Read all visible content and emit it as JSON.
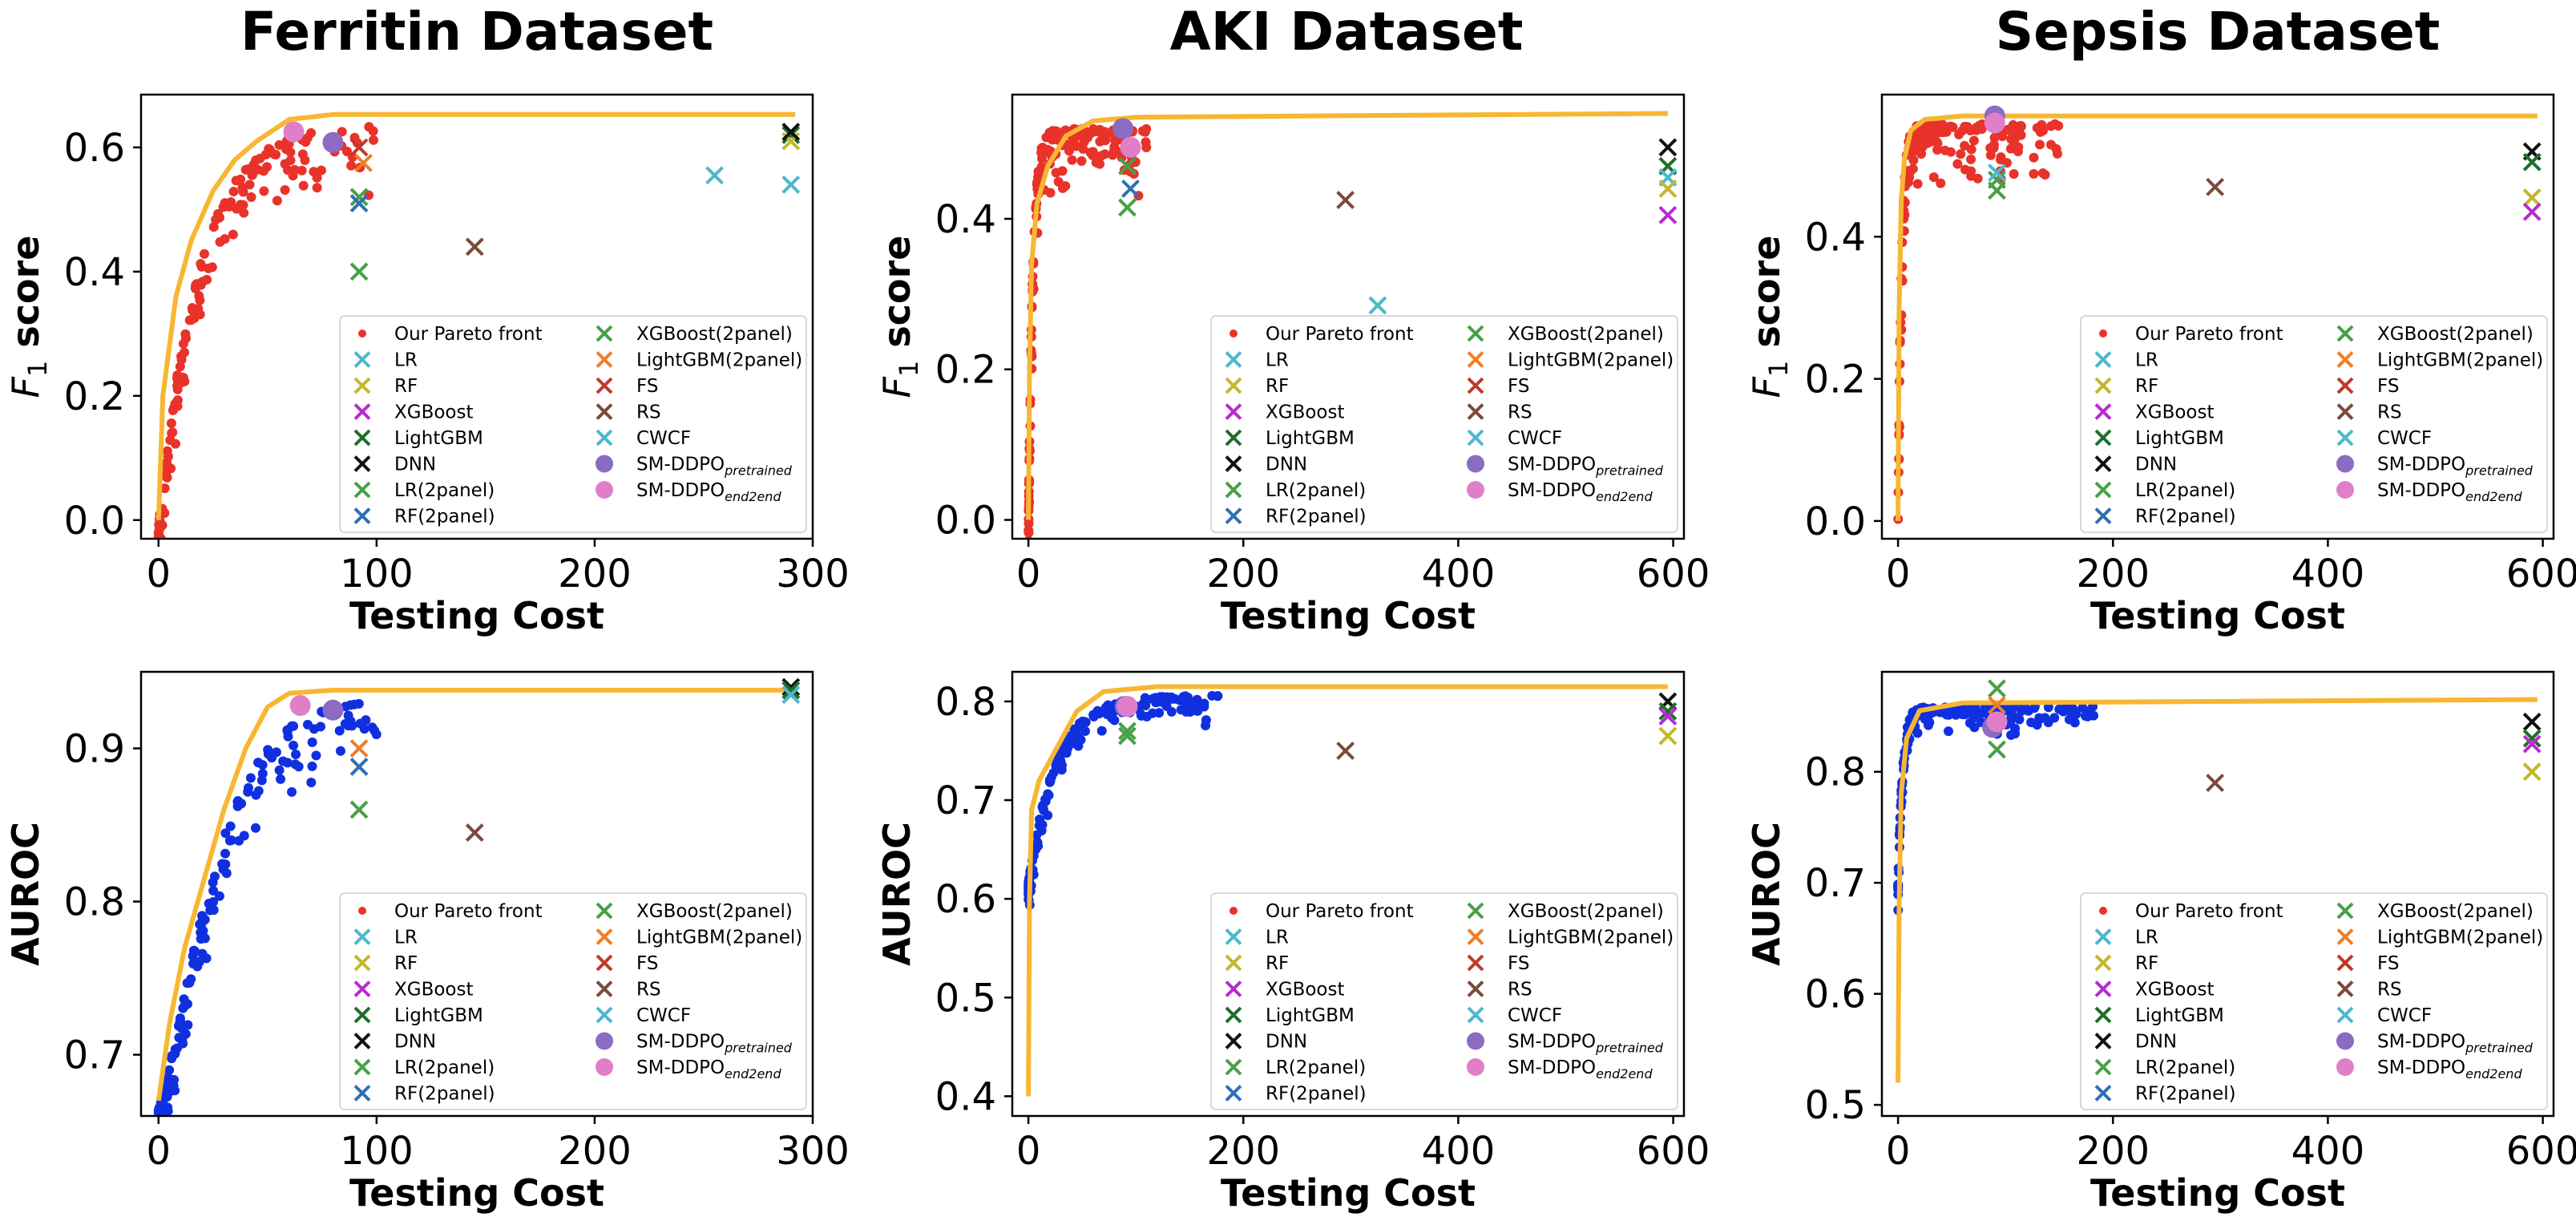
{
  "chart_data": {
    "type": "scatter",
    "column_titles": [
      "Ferritin Dataset",
      "AKI Dataset",
      "Sepsis Dataset"
    ],
    "xlabel": "Testing Cost",
    "legend_entries": [
      {
        "label": "Our Pareto front",
        "sub": "",
        "marker": "dot",
        "color": "#e8322a"
      },
      {
        "label": "LR",
        "sub": "",
        "marker": "x",
        "color": "#4db8cc"
      },
      {
        "label": "RF",
        "sub": "",
        "marker": "x",
        "color": "#c4b72a"
      },
      {
        "label": "XGBoost",
        "sub": "",
        "marker": "x",
        "color": "#b52ccf"
      },
      {
        "label": "LightGBM",
        "sub": "",
        "marker": "x",
        "color": "#1f6e2a"
      },
      {
        "label": "DNN",
        "sub": "",
        "marker": "x",
        "color": "#111111"
      },
      {
        "label": "LR(2panel)",
        "sub": "",
        "marker": "x",
        "color": "#48a048"
      },
      {
        "label": "RF(2panel)",
        "sub": "",
        "marker": "x",
        "color": "#2f6fb5"
      },
      {
        "label": "XGBoost(2panel)",
        "sub": "",
        "marker": "x",
        "color": "#48a048"
      },
      {
        "label": "LightGBM(2panel)",
        "sub": "",
        "marker": "x",
        "color": "#f07d2a"
      },
      {
        "label": "FS",
        "sub": "",
        "marker": "x",
        "color": "#c0392b"
      },
      {
        "label": "RS",
        "sub": "",
        "marker": "x",
        "color": "#7b4a3a"
      },
      {
        "label": "CWCF",
        "sub": "",
        "marker": "x",
        "color": "#4db8cc"
      },
      {
        "label": "SM-DDPO",
        "sub": "pretrained",
        "marker": "bigdot",
        "color": "#8c6bc2"
      },
      {
        "label": "SM-DDPO",
        "sub": "end2end",
        "marker": "bigdot",
        "color": "#e07fc8"
      }
    ],
    "panels": [
      {
        "id": "ferritin-f1",
        "column": "Ferritin Dataset",
        "ylabel": "F",
        "ylabel_sub": "1",
        "ylabel_rest": " score",
        "xlim": [
          -8,
          300
        ],
        "ylim": [
          -0.03,
          0.685
        ],
        "xticks": [
          0,
          100,
          200,
          300
        ],
        "xtick_labels": [
          "0",
          "100",
          "200",
          "300"
        ],
        "yticks": [
          0.0,
          0.2,
          0.4,
          0.6
        ],
        "ytick_labels": [
          "0.0",
          "0.2",
          "0.4",
          "0.6"
        ],
        "pareto": {
          "xmax": 100,
          "bottom": 0.0,
          "top": 0.65,
          "scale": 18,
          "power": 1,
          "color": "#e8322a",
          "seed": 11
        },
        "curve": {
          "points": [
            [
              0,
              0.0
            ],
            [
              2,
              0.2
            ],
            [
              8,
              0.36
            ],
            [
              15,
              0.45
            ],
            [
              25,
              0.53
            ],
            [
              35,
              0.58
            ],
            [
              45,
              0.61
            ],
            [
              60,
              0.645
            ],
            [
              80,
              0.653
            ],
            [
              292,
              0.653
            ]
          ]
        },
        "baselines": [
          {
            "x": 290,
            "y": 0.62,
            "color": "#1f6e2a"
          },
          {
            "x": 290,
            "y": 0.61,
            "color": "#c4b72a"
          },
          {
            "x": 290,
            "y": 0.625,
            "color": "#111111"
          },
          {
            "x": 290,
            "y": 0.54,
            "color": "#4db8cc"
          },
          {
            "x": 255,
            "y": 0.555,
            "color": "#4db8cc"
          },
          {
            "x": 145,
            "y": 0.44,
            "color": "#7b4a3a"
          },
          {
            "x": 92,
            "y": 0.52,
            "color": "#48a048"
          },
          {
            "x": 92,
            "y": 0.51,
            "color": "#2f6fb5"
          },
          {
            "x": 92,
            "y": 0.4,
            "color": "#48a048"
          },
          {
            "x": 94,
            "y": 0.575,
            "color": "#f07d2a"
          },
          {
            "x": 92,
            "y": 0.6,
            "color": "#c0392b"
          }
        ],
        "sm_ddpo": [
          {
            "x": 80,
            "y": 0.608,
            "color": "#8c6bc2"
          },
          {
            "x": 62,
            "y": 0.625,
            "color": "#e07fc8"
          }
        ]
      },
      {
        "id": "aki-f1",
        "column": "AKI Dataset",
        "ylabel": "F",
        "ylabel_sub": "1",
        "ylabel_rest": " score",
        "xlim": [
          -15,
          610
        ],
        "ylim": [
          -0.025,
          0.565
        ],
        "xticks": [
          0,
          200,
          400,
          600
        ],
        "xtick_labels": [
          "0",
          "200",
          "400",
          "600"
        ],
        "yticks": [
          0.0,
          0.2,
          0.4
        ],
        "ytick_labels": [
          "0.0",
          "0.2",
          "0.4"
        ],
        "pareto": {
          "xmax": 110,
          "bottom": 0.0,
          "top": 0.53,
          "scale": 4,
          "power": 1,
          "color": "#e8322a",
          "seed": 23
        },
        "curve": {
          "points": [
            [
              0,
              0.0
            ],
            [
              1,
              0.2
            ],
            [
              3,
              0.34
            ],
            [
              8,
              0.42
            ],
            [
              18,
              0.47
            ],
            [
              35,
              0.51
            ],
            [
              60,
              0.53
            ],
            [
              100,
              0.535
            ],
            [
              595,
              0.54
            ]
          ]
        },
        "baselines": [
          {
            "x": 595,
            "y": 0.495,
            "color": "#111111"
          },
          {
            "x": 595,
            "y": 0.47,
            "color": "#1f6e2a"
          },
          {
            "x": 595,
            "y": 0.455,
            "color": "#4db8cc"
          },
          {
            "x": 595,
            "y": 0.44,
            "color": "#c4b72a"
          },
          {
            "x": 595,
            "y": 0.405,
            "color": "#b52ccf"
          },
          {
            "x": 325,
            "y": 0.285,
            "color": "#4db8cc"
          },
          {
            "x": 295,
            "y": 0.425,
            "color": "#7b4a3a"
          },
          {
            "x": 92,
            "y": 0.415,
            "color": "#48a048"
          },
          {
            "x": 92,
            "y": 0.47,
            "color": "#48a048"
          },
          {
            "x": 95,
            "y": 0.44,
            "color": "#2f6fb5"
          }
        ],
        "sm_ddpo": [
          {
            "x": 88,
            "y": 0.52,
            "color": "#8c6bc2"
          },
          {
            "x": 95,
            "y": 0.495,
            "color": "#e07fc8"
          }
        ]
      },
      {
        "id": "sepsis-f1",
        "column": "Sepsis Dataset",
        "ylabel": "F",
        "ylabel_sub": "1",
        "ylabel_rest": " score",
        "xlim": [
          -15,
          610
        ],
        "ylim": [
          -0.025,
          0.6
        ],
        "xticks": [
          0,
          200,
          400,
          600
        ],
        "xtick_labels": [
          "0",
          "200",
          "400",
          "600"
        ],
        "yticks": [
          0.0,
          0.2,
          0.4
        ],
        "ytick_labels": [
          "0.0",
          "0.2",
          "0.4"
        ],
        "pareto": {
          "xmax": 150,
          "bottom": 0.0,
          "top": 0.57,
          "scale": 3,
          "power": 1,
          "color": "#e8322a",
          "seed": 37
        },
        "curve": {
          "points": [
            [
              0,
              0.0
            ],
            [
              1,
              0.3
            ],
            [
              3,
              0.45
            ],
            [
              6,
              0.51
            ],
            [
              12,
              0.55
            ],
            [
              25,
              0.565
            ],
            [
              60,
              0.57
            ],
            [
              595,
              0.57
            ]
          ]
        },
        "baselines": [
          {
            "x": 590,
            "y": 0.52,
            "color": "#111111"
          },
          {
            "x": 590,
            "y": 0.505,
            "color": "#1f6e2a"
          },
          {
            "x": 590,
            "y": 0.455,
            "color": "#c4b72a"
          },
          {
            "x": 590,
            "y": 0.435,
            "color": "#b52ccf"
          },
          {
            "x": 295,
            "y": 0.47,
            "color": "#7b4a3a"
          },
          {
            "x": 92,
            "y": 0.48,
            "color": "#48a048"
          },
          {
            "x": 92,
            "y": 0.49,
            "color": "#4db8cc"
          },
          {
            "x": 92,
            "y": 0.465,
            "color": "#48a048"
          }
        ],
        "sm_ddpo": [
          {
            "x": 90,
            "y": 0.57,
            "color": "#8c6bc2"
          },
          {
            "x": 90,
            "y": 0.56,
            "color": "#e07fc8"
          }
        ]
      },
      {
        "id": "ferritin-auroc",
        "column": "Ferritin Dataset",
        "ylabel": "AUROC",
        "ylabel_sub": "",
        "ylabel_rest": "",
        "xlim": [
          -8,
          300
        ],
        "ylim": [
          0.66,
          0.95
        ],
        "xticks": [
          0,
          100,
          200,
          300
        ],
        "xtick_labels": [
          "0",
          "100",
          "200",
          "300"
        ],
        "yticks": [
          0.7,
          0.8,
          0.9
        ],
        "ytick_labels": [
          "0.7",
          "0.8",
          "0.9"
        ],
        "pareto": {
          "xmax": 100,
          "bottom": 0.67,
          "top": 0.937,
          "scale": 28,
          "power": 1.3,
          "color": "#1030e0",
          "seed": 51
        },
        "curve": {
          "points": [
            [
              0,
              0.67
            ],
            [
              5,
              0.72
            ],
            [
              12,
              0.77
            ],
            [
              20,
              0.81
            ],
            [
              30,
              0.86
            ],
            [
              40,
              0.9
            ],
            [
              50,
              0.927
            ],
            [
              60,
              0.936
            ],
            [
              80,
              0.938
            ],
            [
              292,
              0.938
            ]
          ]
        },
        "baselines": [
          {
            "x": 290,
            "y": 0.94,
            "color": "#111111"
          },
          {
            "x": 290,
            "y": 0.938,
            "color": "#1f6e2a"
          },
          {
            "x": 290,
            "y": 0.935,
            "color": "#4db8cc"
          },
          {
            "x": 145,
            "y": 0.845,
            "color": "#7b4a3a"
          },
          {
            "x": 92,
            "y": 0.86,
            "color": "#48a048"
          },
          {
            "x": 92,
            "y": 0.888,
            "color": "#2f6fb5"
          },
          {
            "x": 92,
            "y": 0.9,
            "color": "#f07d2a"
          }
        ],
        "sm_ddpo": [
          {
            "x": 80,
            "y": 0.925,
            "color": "#8c6bc2"
          },
          {
            "x": 65,
            "y": 0.928,
            "color": "#e07fc8"
          }
        ]
      },
      {
        "id": "aki-auroc",
        "column": "AKI Dataset",
        "ylabel": "AUROC",
        "ylabel_sub": "",
        "ylabel_rest": "",
        "xlim": [
          -15,
          610
        ],
        "ylim": [
          0.38,
          0.83
        ],
        "xticks": [
          0,
          200,
          400,
          600
        ],
        "xtick_labels": [
          "0",
          "200",
          "400",
          "600"
        ],
        "yticks": [
          0.4,
          0.5,
          0.6,
          0.7,
          0.8
        ],
        "ytick_labels": [
          "0.4",
          "0.5",
          "0.6",
          "0.7",
          "0.8"
        ],
        "pareto": {
          "xmax": 180,
          "bottom": 0.62,
          "top": 0.81,
          "scale": 25,
          "power": 1,
          "color": "#1030e0",
          "seed": 67
        },
        "curve": {
          "points": [
            [
              0,
              0.4
            ],
            [
              1,
              0.6
            ],
            [
              3,
              0.69
            ],
            [
              10,
              0.72
            ],
            [
              25,
              0.75
            ],
            [
              45,
              0.79
            ],
            [
              70,
              0.81
            ],
            [
              120,
              0.815
            ],
            [
              595,
              0.815
            ]
          ]
        },
        "baselines": [
          {
            "x": 595,
            "y": 0.8,
            "color": "#111111"
          },
          {
            "x": 595,
            "y": 0.79,
            "color": "#1f6e2a"
          },
          {
            "x": 595,
            "y": 0.785,
            "color": "#b52ccf"
          },
          {
            "x": 595,
            "y": 0.765,
            "color": "#c4b72a"
          },
          {
            "x": 295,
            "y": 0.75,
            "color": "#7b4a3a"
          },
          {
            "x": 92,
            "y": 0.77,
            "color": "#48a048"
          },
          {
            "x": 92,
            "y": 0.765,
            "color": "#48a048"
          }
        ],
        "sm_ddpo": [
          {
            "x": 90,
            "y": 0.795,
            "color": "#8c6bc2"
          },
          {
            "x": 92,
            "y": 0.795,
            "color": "#e07fc8"
          }
        ]
      },
      {
        "id": "sepsis-auroc",
        "column": "Sepsis Dataset",
        "ylabel": "AUROC",
        "ylabel_sub": "",
        "ylabel_rest": "",
        "xlim": [
          -15,
          610
        ],
        "ylim": [
          0.49,
          0.89
        ],
        "xticks": [
          0,
          200,
          400,
          600
        ],
        "xtick_labels": [
          "0",
          "200",
          "400",
          "600"
        ],
        "yticks": [
          0.5,
          0.6,
          0.7,
          0.8
        ],
        "ytick_labels": [
          "0.5",
          "0.6",
          "0.7",
          "0.8"
        ],
        "pareto": {
          "xmax": 185,
          "bottom": 0.7,
          "top": 0.862,
          "scale": 4,
          "power": 1,
          "color": "#1030e0",
          "seed": 83
        },
        "curve": {
          "points": [
            [
              0,
              0.52
            ],
            [
              1,
              0.68
            ],
            [
              3,
              0.78
            ],
            [
              8,
              0.83
            ],
            [
              20,
              0.855
            ],
            [
              60,
              0.862
            ],
            [
              595,
              0.865
            ]
          ]
        },
        "baselines": [
          {
            "x": 590,
            "y": 0.845,
            "color": "#111111"
          },
          {
            "x": 590,
            "y": 0.83,
            "color": "#1f6e2a"
          },
          {
            "x": 590,
            "y": 0.825,
            "color": "#b52ccf"
          },
          {
            "x": 590,
            "y": 0.8,
            "color": "#c4b72a"
          },
          {
            "x": 295,
            "y": 0.79,
            "color": "#7b4a3a"
          },
          {
            "x": 92,
            "y": 0.875,
            "color": "#48a048"
          },
          {
            "x": 92,
            "y": 0.86,
            "color": "#f07d2a"
          },
          {
            "x": 92,
            "y": 0.82,
            "color": "#48a048"
          }
        ],
        "sm_ddpo": [
          {
            "x": 88,
            "y": 0.84,
            "color": "#8c6bc2"
          },
          {
            "x": 92,
            "y": 0.845,
            "color": "#e07fc8"
          }
        ]
      }
    ],
    "colors": {
      "curve": "#f7b733",
      "axis": "#000000",
      "legend_border": "#d8d8d8"
    }
  }
}
